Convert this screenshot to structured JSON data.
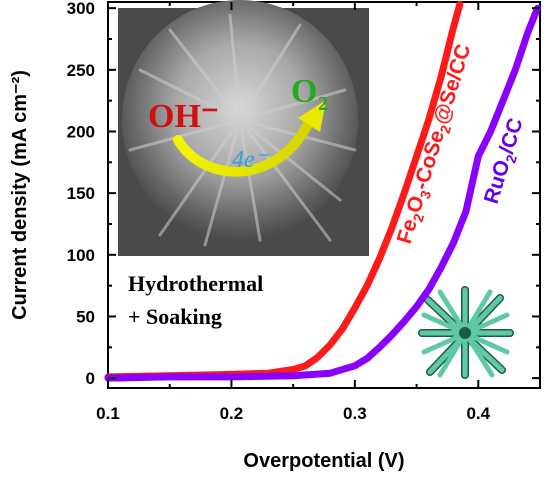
{
  "chart_data": {
    "type": "line",
    "xlabel": "Overpotential (V)",
    "ylabel": "Current density (mA cm⁻²)",
    "xlim": [
      0.1,
      0.45
    ],
    "ylim": [
      -8,
      305
    ],
    "xticks": [
      "0.1",
      "0.2",
      "0.3",
      "0.4"
    ],
    "yticks": [
      "0",
      "50",
      "100",
      "150",
      "200",
      "250",
      "300"
    ],
    "grid": false,
    "series": [
      {
        "name": "Fe2O3-CoSe2@Se/CC",
        "color": "#ff1a1a",
        "x": [
          0.1,
          0.15,
          0.2,
          0.23,
          0.25,
          0.26,
          0.27,
          0.28,
          0.29,
          0.3,
          0.31,
          0.32,
          0.33,
          0.34,
          0.35,
          0.36,
          0.37,
          0.38,
          0.385
        ],
        "y": [
          1,
          2,
          3,
          4,
          7,
          10,
          17,
          27,
          40,
          57,
          75,
          97,
          122,
          150,
          180,
          210,
          245,
          285,
          303
        ]
      },
      {
        "name": "RuO2/CC",
        "color": "#8a00ff",
        "x": [
          0.1,
          0.15,
          0.2,
          0.25,
          0.28,
          0.3,
          0.31,
          0.32,
          0.33,
          0.34,
          0.35,
          0.36,
          0.37,
          0.38,
          0.39,
          0.4,
          0.41,
          0.42,
          0.43,
          0.44,
          0.448
        ],
        "y": [
          0,
          1,
          1,
          2,
          4,
          10,
          16,
          25,
          35,
          46,
          58,
          72,
          90,
          110,
          135,
          180,
          200,
          225,
          250,
          280,
          300
        ]
      }
    ]
  },
  "labels": {
    "series1": "Fe2O3-CoSe2@Se/CC",
    "series2": "RuO2/CC",
    "synthesis_line1": "Hydrothermal",
    "synthesis_line2": "+ Soaking",
    "inset_reactant": "OH⁻",
    "inset_product": "O2",
    "inset_electrons": "4e⁻"
  },
  "colors": {
    "series1": "#ff1a1a",
    "series2": "#8a00ff",
    "inset_reactant": "#d01010",
    "inset_product": "#22aa22",
    "inset_electrons": "#2aa0e0",
    "inset_arrow": "#e8e800"
  }
}
